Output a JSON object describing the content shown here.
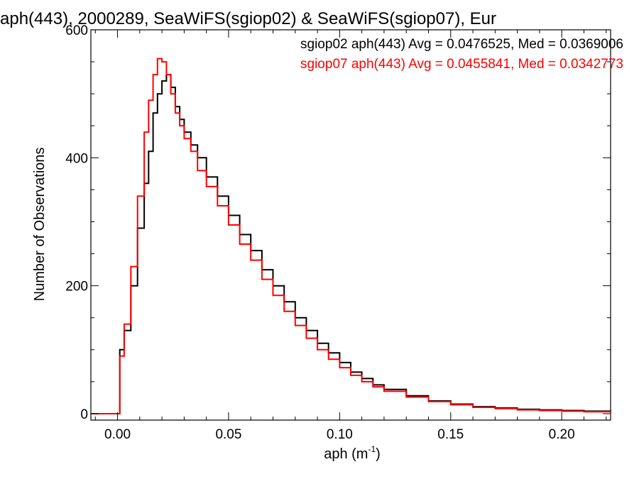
{
  "chart_data": {
    "type": "line",
    "step": true,
    "title": "aph(443), 2000289, SeaWiFS(sgiop02) & SeaWiFS(sgiop07), Eur",
    "xlabel_base": "aph (m",
    "xlabel_sup": "-1",
    "xlabel_end": ")",
    "ylabel": "Number of Observations",
    "xlim": [
      -0.012,
      0.222
    ],
    "ylim": [
      -10,
      600
    ],
    "xticks": [
      0.0,
      0.05,
      0.1,
      0.15,
      0.2
    ],
    "xtick_labels": [
      "0.00",
      "0.05",
      "0.10",
      "0.15",
      "0.20"
    ],
    "yticks": [
      0,
      200,
      400,
      600
    ],
    "ytick_labels": [
      "0",
      "200",
      "400",
      "600"
    ],
    "grid": false,
    "legend_position": "top-right",
    "series": [
      {
        "name": "sgiop02",
        "legend_text": "sgiop02 aph(443) Avg = 0.0476525, Med = 0.0369006",
        "color": "#000000",
        "x": [
          -0.012,
          0.001,
          0.003,
          0.006,
          0.009,
          0.012,
          0.014,
          0.016,
          0.018,
          0.02,
          0.022,
          0.024,
          0.026,
          0.028,
          0.03,
          0.033,
          0.036,
          0.04,
          0.045,
          0.05,
          0.055,
          0.06,
          0.065,
          0.07,
          0.075,
          0.08,
          0.085,
          0.09,
          0.095,
          0.1,
          0.105,
          0.11,
          0.115,
          0.12,
          0.13,
          0.14,
          0.15,
          0.16,
          0.17,
          0.18,
          0.19,
          0.2,
          0.21,
          0.222
        ],
        "values": [
          0,
          100,
          130,
          200,
          290,
          360,
          410,
          470,
          500,
          520,
          530,
          510,
          480,
          460,
          440,
          420,
          400,
          370,
          340,
          310,
          280,
          255,
          225,
          200,
          175,
          150,
          130,
          110,
          95,
          80,
          65,
          55,
          45,
          38,
          28,
          20,
          15,
          11,
          9,
          7,
          6,
          5,
          4,
          3
        ]
      },
      {
        "name": "sgiop07",
        "legend_text": "sgiop07 aph(443) Avg = 0.0455841, Med = 0.0342773",
        "color": "#ff0000",
        "x": [
          -0.012,
          0.001,
          0.003,
          0.006,
          0.009,
          0.012,
          0.014,
          0.016,
          0.018,
          0.02,
          0.022,
          0.024,
          0.026,
          0.028,
          0.03,
          0.033,
          0.036,
          0.04,
          0.045,
          0.05,
          0.055,
          0.06,
          0.065,
          0.07,
          0.075,
          0.08,
          0.085,
          0.09,
          0.095,
          0.1,
          0.105,
          0.11,
          0.115,
          0.12,
          0.13,
          0.14,
          0.15,
          0.16,
          0.17,
          0.18,
          0.19,
          0.2,
          0.21,
          0.222
        ],
        "values": [
          0,
          90,
          140,
          230,
          340,
          440,
          490,
          530,
          555,
          550,
          530,
          500,
          470,
          450,
          430,
          410,
          380,
          355,
          325,
          295,
          265,
          240,
          210,
          185,
          160,
          138,
          118,
          100,
          85,
          72,
          60,
          50,
          42,
          35,
          26,
          19,
          14,
          10,
          8,
          6,
          5,
          4,
          3,
          2
        ]
      }
    ]
  }
}
